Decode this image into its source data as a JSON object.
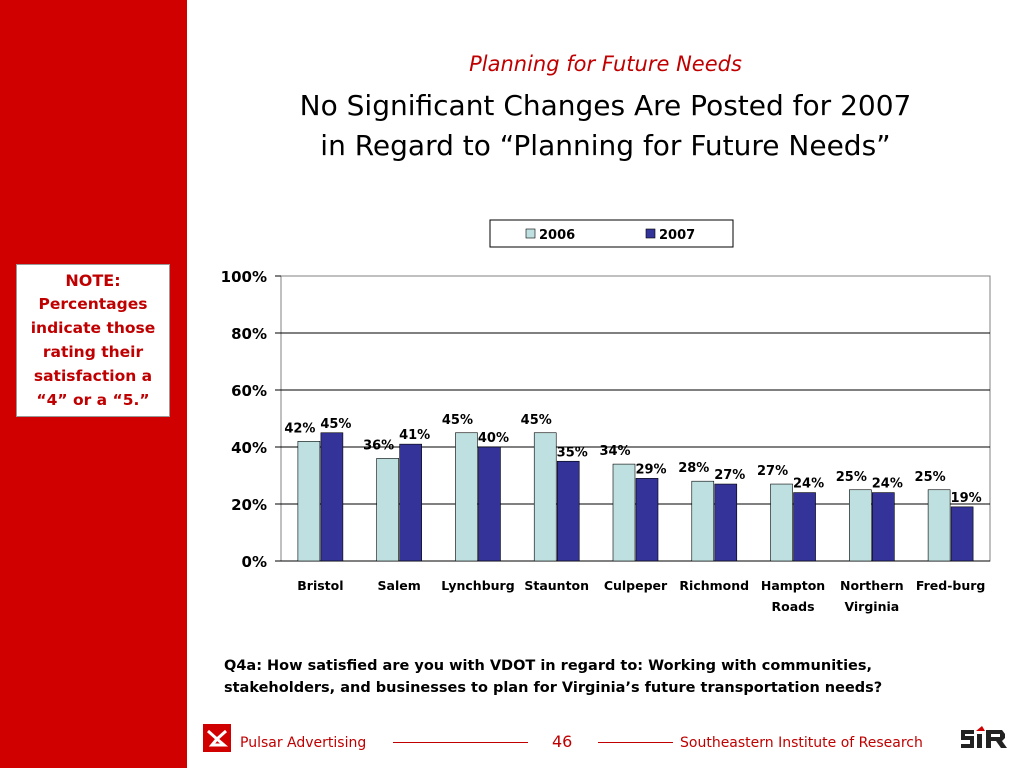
{
  "note": {
    "title": "NOTE:",
    "lines": [
      "Percentages",
      "indicate those",
      "rating their",
      "satisfaction a",
      "“4” or a “5.”"
    ]
  },
  "header": {
    "subtitle": "Planning for Future Needs",
    "title_line1": "No Significant Changes Are Posted for 2007",
    "title_line2": "in Regard to “Planning for Future Needs”"
  },
  "chart_data": {
    "type": "bar",
    "categories": [
      [
        "Bristol"
      ],
      [
        "Salem"
      ],
      [
        "Lynchburg"
      ],
      [
        "Staunton"
      ],
      [
        "Culpeper"
      ],
      [
        "Richmond"
      ],
      [
        "Hampton",
        "Roads"
      ],
      [
        "Northern",
        "Virginia"
      ],
      [
        "Fred-burg"
      ]
    ],
    "series": [
      {
        "name": "2006",
        "color": "#bfe0e0",
        "values": [
          42,
          36,
          45,
          45,
          34,
          28,
          27,
          25,
          25
        ]
      },
      {
        "name": "2007",
        "color": "#333399",
        "values": [
          45,
          41,
          40,
          35,
          29,
          27,
          24,
          24,
          19
        ]
      }
    ],
    "yticks": [
      "0%",
      "20%",
      "40%",
      "60%",
      "80%",
      "100%"
    ],
    "ylim": [
      0,
      100
    ],
    "value_suffix": "%",
    "legend_position": "top",
    "grid": true
  },
  "question": {
    "line1": "Q4a: How satisfied are you with VDOT in regard to:  Working with communities,",
    "line2": "stakeholders, and businesses to plan for Virginia’s future transportation needs?"
  },
  "footer": {
    "left_text": "Pulsar Advertising",
    "page_number": "46",
    "right_text": "Southeastern Institute of Research"
  }
}
